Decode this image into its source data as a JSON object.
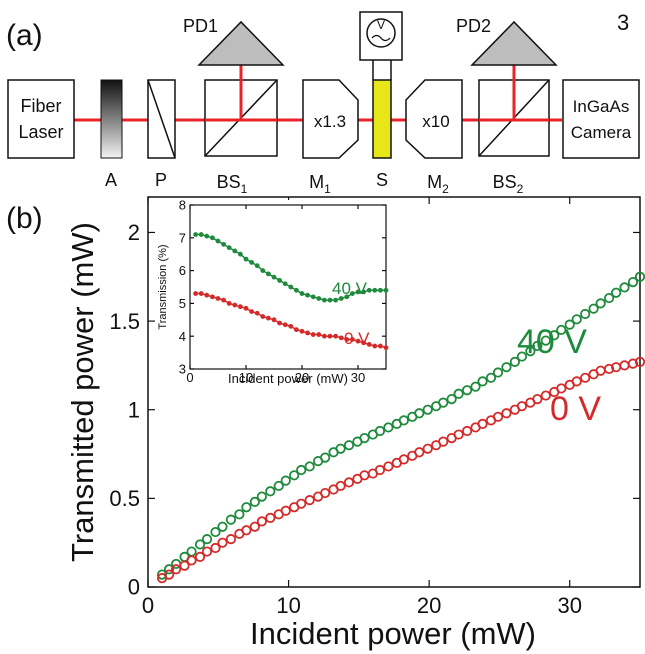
{
  "page_number": "3",
  "panel_a": {
    "label": "(a)",
    "fiber_laser": [
      "Fiber",
      "Laser"
    ],
    "camera": [
      "InGaAs",
      "Camera"
    ],
    "pd1": "PD1",
    "pd2": "PD2",
    "voltmeter": "V",
    "m1_mag": "x1.3",
    "m2_mag": "x10",
    "labels": {
      "A": "A",
      "P": "P",
      "BS1": "BS",
      "BS1_sub": "1",
      "M1": "M",
      "M1_sub": "1",
      "S": "S",
      "M2": "M",
      "M2_sub": "2",
      "BS2": "BS",
      "BS2_sub": "2"
    },
    "colors": {
      "beam": "#e8232a",
      "sample": "#e6e619",
      "detector": "#bdbdbd"
    }
  },
  "panel_b": {
    "label": "(b)",
    "annot_40": "40 V",
    "annot_0": "0 V",
    "inset_annot_40": "40 V",
    "inset_annot_0": "0 V"
  },
  "chart_data": [
    {
      "type": "scatter",
      "xlabel": "Incident power (mW)",
      "ylabel": "Transmitted power (mW)",
      "xlim": [
        0,
        35
      ],
      "ylim": [
        0,
        2.2
      ],
      "xticks": [
        "0",
        "10",
        "20",
        "30"
      ],
      "yticks": [
        "0",
        "0.5",
        "1",
        "1.5",
        "2"
      ],
      "series": [
        {
          "name": "40 V",
          "color": "#1e8a3c",
          "x": [
            1,
            1.5,
            2,
            2.6,
            3.1,
            3.7,
            4.2,
            4.8,
            5.3,
            5.9,
            6.5,
            7,
            7.6,
            8.1,
            8.7,
            9.3,
            9.8,
            10.4,
            10.9,
            11.5,
            12.1,
            12.6,
            13.2,
            13.7,
            14.3,
            14.9,
            15.4,
            16,
            16.5,
            17.1,
            17.7,
            18.2,
            18.8,
            19.3,
            19.9,
            20.5,
            21,
            21.6,
            22.1,
            22.7,
            23.3,
            23.8,
            24.4,
            24.9,
            25.5,
            26.1,
            26.6,
            27.2,
            27.7,
            28.3,
            28.9,
            29.4,
            30,
            30.5,
            31.1,
            31.7,
            32.2,
            32.8,
            33.3,
            33.9,
            34.5,
            35
          ],
          "y": [
            0.07,
            0.1,
            0.13,
            0.17,
            0.2,
            0.24,
            0.27,
            0.31,
            0.34,
            0.38,
            0.41,
            0.45,
            0.48,
            0.51,
            0.54,
            0.57,
            0.6,
            0.63,
            0.66,
            0.68,
            0.71,
            0.73,
            0.76,
            0.78,
            0.8,
            0.82,
            0.84,
            0.86,
            0.88,
            0.9,
            0.92,
            0.94,
            0.96,
            0.98,
            1.0,
            1.02,
            1.04,
            1.06,
            1.09,
            1.11,
            1.13,
            1.16,
            1.18,
            1.21,
            1.24,
            1.27,
            1.3,
            1.33,
            1.36,
            1.39,
            1.42,
            1.45,
            1.48,
            1.51,
            1.54,
            1.57,
            1.6,
            1.63,
            1.66,
            1.69,
            1.72,
            1.75
          ]
        },
        {
          "name": "0 V",
          "color": "#d42a2a",
          "x": [
            1,
            1.5,
            2,
            2.6,
            3.1,
            3.7,
            4.2,
            4.8,
            5.3,
            5.9,
            6.5,
            7,
            7.6,
            8.1,
            8.7,
            9.3,
            9.8,
            10.4,
            10.9,
            11.5,
            12.1,
            12.6,
            13.2,
            13.7,
            14.3,
            14.9,
            15.4,
            16,
            16.5,
            17.1,
            17.7,
            18.2,
            18.8,
            19.3,
            19.9,
            20.5,
            21,
            21.6,
            22.1,
            22.7,
            23.3,
            23.8,
            24.4,
            24.9,
            25.5,
            26.1,
            26.6,
            27.2,
            27.7,
            28.3,
            28.9,
            29.4,
            30,
            30.5,
            31.1,
            31.7,
            32.2,
            32.8,
            33.3,
            33.9,
            34.5,
            35
          ],
          "y": [
            0.05,
            0.07,
            0.1,
            0.12,
            0.15,
            0.17,
            0.2,
            0.22,
            0.25,
            0.27,
            0.3,
            0.32,
            0.34,
            0.37,
            0.39,
            0.41,
            0.43,
            0.45,
            0.47,
            0.49,
            0.51,
            0.53,
            0.55,
            0.57,
            0.59,
            0.61,
            0.63,
            0.64,
            0.66,
            0.68,
            0.7,
            0.72,
            0.74,
            0.76,
            0.78,
            0.8,
            0.82,
            0.84,
            0.86,
            0.88,
            0.9,
            0.92,
            0.94,
            0.96,
            0.98,
            1.0,
            1.02,
            1.04,
            1.06,
            1.08,
            1.1,
            1.12,
            1.14,
            1.16,
            1.18,
            1.2,
            1.22,
            1.23,
            1.24,
            1.25,
            1.26,
            1.27
          ]
        }
      ]
    },
    {
      "type": "line",
      "xlabel": "Incident power (mW)",
      "ylabel": "Transmission (%)",
      "xlim": [
        0,
        35
      ],
      "ylim": [
        3,
        8
      ],
      "xticks": [
        "0",
        "10",
        "20",
        "30"
      ],
      "yticks": [
        "3",
        "4",
        "5",
        "6",
        "7",
        "8"
      ],
      "series": [
        {
          "name": "40 V",
          "color": "#1e8a3c",
          "x": [
            1,
            2,
            3,
            4,
            5,
            6,
            7,
            8,
            9,
            10,
            11,
            12,
            13,
            14,
            15,
            16,
            17,
            18,
            19,
            20,
            21,
            22,
            23,
            24,
            25,
            26,
            27,
            28,
            29,
            30,
            31,
            32,
            33,
            34,
            35
          ],
          "y": [
            7.1,
            7.1,
            7.05,
            7.0,
            6.9,
            6.8,
            6.7,
            6.6,
            6.5,
            6.35,
            6.25,
            6.15,
            6.0,
            5.9,
            5.8,
            5.7,
            5.6,
            5.5,
            5.4,
            5.3,
            5.25,
            5.2,
            5.15,
            5.1,
            5.1,
            5.1,
            5.15,
            5.2,
            5.3,
            5.35,
            5.35,
            5.4,
            5.4,
            5.4,
            5.4
          ]
        },
        {
          "name": "0 V",
          "color": "#d42a2a",
          "x": [
            1,
            2,
            3,
            4,
            5,
            6,
            7,
            8,
            9,
            10,
            11,
            12,
            13,
            14,
            15,
            16,
            17,
            18,
            19,
            20,
            21,
            22,
            23,
            24,
            25,
            26,
            27,
            28,
            29,
            30,
            31,
            32,
            33,
            34,
            35
          ],
          "y": [
            5.3,
            5.3,
            5.25,
            5.2,
            5.15,
            5.1,
            5.0,
            4.95,
            4.9,
            4.85,
            4.75,
            4.7,
            4.6,
            4.55,
            4.5,
            4.4,
            4.35,
            4.3,
            4.2,
            4.15,
            4.1,
            4.05,
            4.05,
            4.0,
            4.0,
            4.0,
            3.95,
            3.9,
            3.9,
            3.85,
            3.8,
            3.75,
            3.7,
            3.7,
            3.65
          ]
        }
      ]
    }
  ]
}
